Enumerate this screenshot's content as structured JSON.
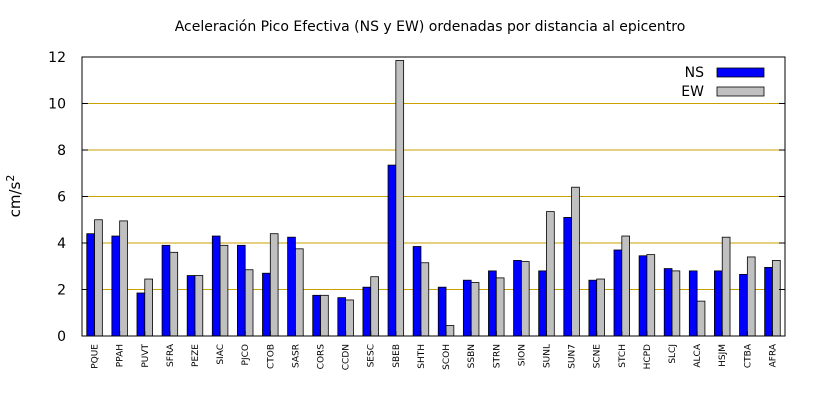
{
  "chart_data": {
    "type": "bar",
    "title": "Aceleración Pico Efectiva (NS y EW) ordenadas por distancia al epicentro",
    "ylabel": "cm/s",
    "ylabel_sup": "2",
    "xlabel": "",
    "ylim": [
      0,
      12
    ],
    "yticks": [
      0,
      2,
      4,
      6,
      8,
      10,
      12
    ],
    "grid": "horizontal",
    "legend_position": "top-right",
    "categories": [
      "PQUE",
      "PPAH",
      "PUVT",
      "SFRA",
      "PEZE",
      "SIAC",
      "PJCO",
      "CTOB",
      "SASR",
      "CORS",
      "CCDN",
      "SESC",
      "SBEB",
      "SHTH",
      "SCOH",
      "SSBN",
      "STRN",
      "SION",
      "SUNL",
      "SUN7",
      "SCNE",
      "STCH",
      "HCPD",
      "SLCJ",
      "ALCA",
      "HSJM",
      "CTBA",
      "AFRA"
    ],
    "series": [
      {
        "name": "NS",
        "color": "#0000ff",
        "values": [
          4.4,
          4.3,
          1.85,
          3.9,
          2.6,
          4.3,
          3.9,
          2.7,
          4.25,
          1.75,
          1.65,
          2.1,
          7.35,
          3.85,
          2.1,
          2.4,
          2.8,
          3.25,
          2.8,
          5.1,
          2.4,
          3.7,
          3.45,
          2.9,
          2.8,
          2.8,
          2.65,
          2.95
        ]
      },
      {
        "name": "EW",
        "color": "#c0c0c0",
        "values": [
          5.0,
          4.95,
          2.45,
          3.6,
          2.6,
          3.9,
          2.85,
          4.4,
          3.75,
          1.75,
          1.55,
          2.55,
          11.85,
          3.15,
          0.45,
          2.3,
          2.5,
          3.2,
          5.35,
          6.4,
          2.45,
          4.3,
          3.5,
          2.8,
          1.5,
          4.25,
          3.4,
          3.25
        ]
      }
    ]
  },
  "colors": {
    "grid": "#c8a000",
    "axis": "#000000"
  }
}
